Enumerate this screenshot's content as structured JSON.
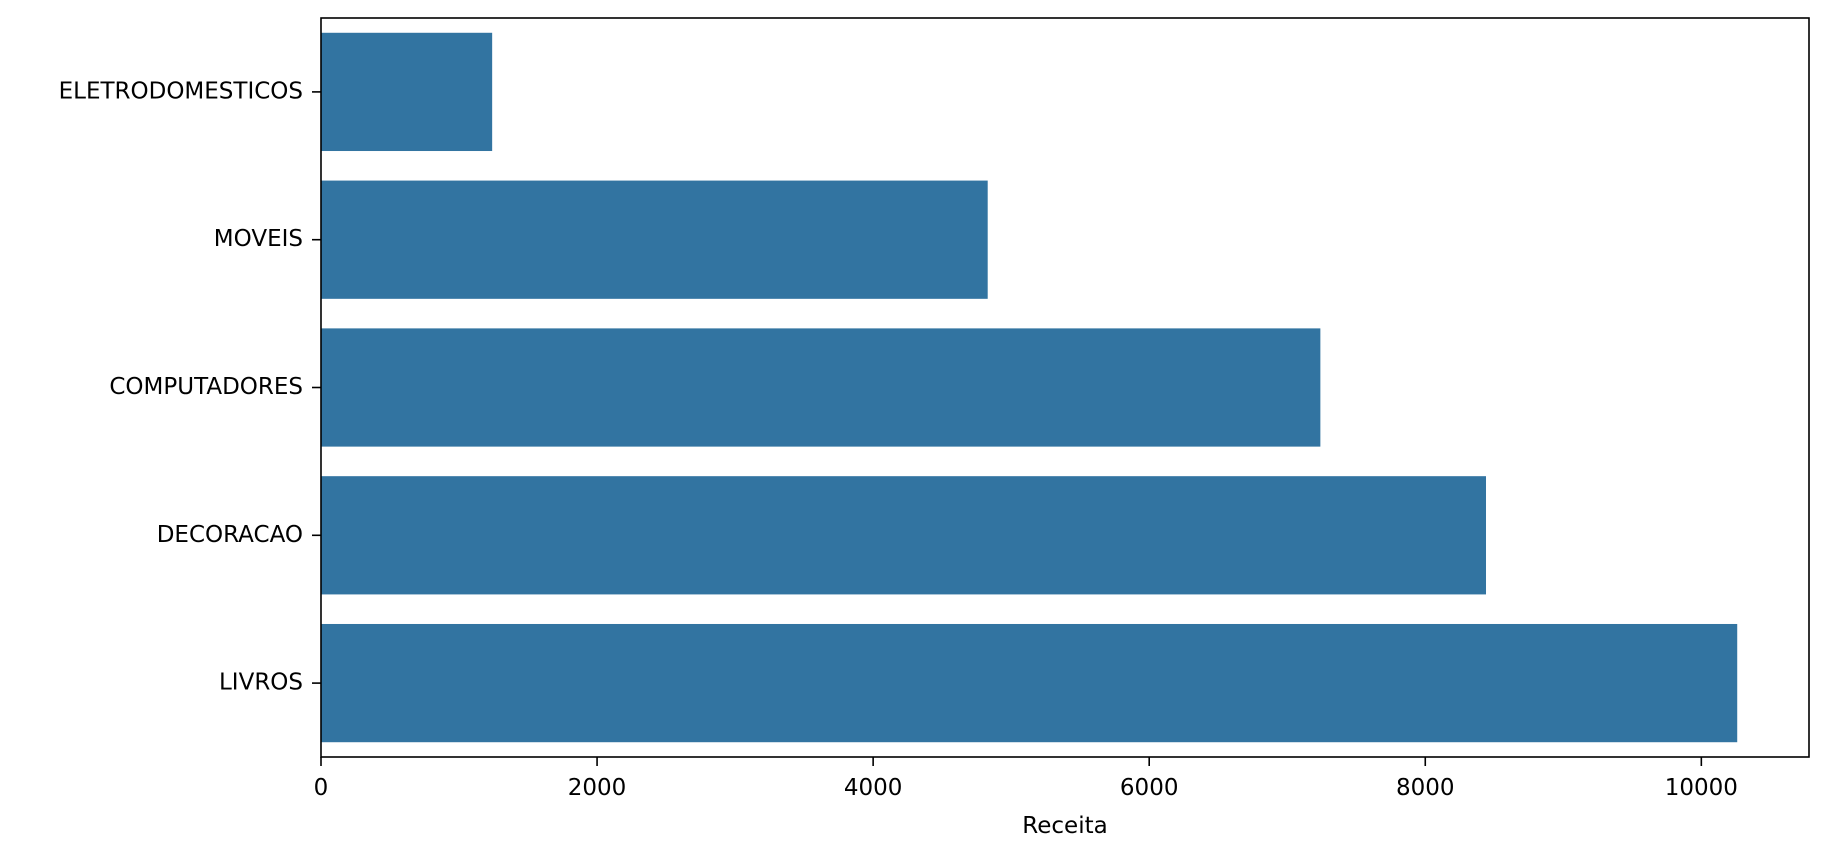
{
  "chart_data": {
    "type": "bar",
    "orientation": "horizontal",
    "categories": [
      "ELETRODOMESTICOS",
      "MOVEIS",
      "COMPUTADORES",
      "DECORACAO",
      "LIVROS"
    ],
    "values": [
      1240,
      4830,
      7240,
      8440,
      10260
    ],
    "title": "",
    "xlabel": "Receita",
    "ylabel": "",
    "xlim": [
      0,
      10780
    ],
    "xticks": [
      0,
      2000,
      4000,
      6000,
      8000,
      10000
    ],
    "xtick_labels": [
      "0",
      "2000",
      "4000",
      "6000",
      "8000",
      "10000"
    ],
    "bar_color": "#3274a1",
    "grid": false,
    "legend": "none"
  }
}
